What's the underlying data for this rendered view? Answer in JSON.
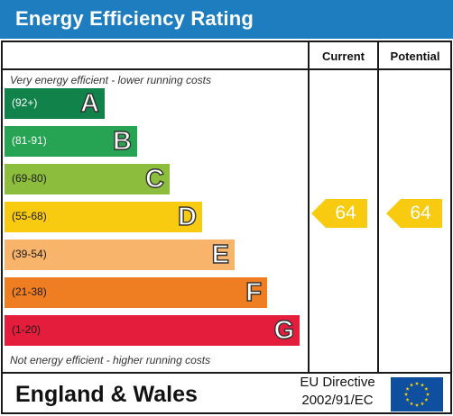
{
  "header": {
    "title": "Energy Efficiency Rating"
  },
  "columns": {
    "current": "Current",
    "potential": "Potential"
  },
  "notes": {
    "top": "Very energy efficient - lower running costs",
    "bottom": "Not energy efficient - higher running costs"
  },
  "bands": [
    {
      "range": "(92+)",
      "letter": "A",
      "color": "#11824a"
    },
    {
      "range": "(81-91)",
      "letter": "B",
      "color": "#27a453"
    },
    {
      "range": "(69-80)",
      "letter": "C",
      "color": "#8dbd3c"
    },
    {
      "range": "(55-68)",
      "letter": "D",
      "color": "#f8cb11"
    },
    {
      "range": "(39-54)",
      "letter": "E",
      "color": "#f9b46b"
    },
    {
      "range": "(21-38)",
      "letter": "F",
      "color": "#ef7e22"
    },
    {
      "range": "(1-20)",
      "letter": "G",
      "color": "#e41d3d"
    }
  ],
  "ratings": {
    "current": {
      "value": "64",
      "band": "D",
      "color": "#f8cb11"
    },
    "potential": {
      "value": "64",
      "band": "D",
      "color": "#f8cb11"
    }
  },
  "footer": {
    "region": "England & Wales",
    "directive_line1": "EU Directive",
    "directive_line2": "2002/91/EC",
    "flag_icon": "eu-flag-icon",
    "flag_color": "#0e4fa0",
    "star_color": "#ffd100"
  },
  "chart_data": {
    "type": "bar",
    "title": "Energy Efficiency Rating",
    "categories": [
      "A",
      "B",
      "C",
      "D",
      "E",
      "F",
      "G"
    ],
    "ranges": [
      "(92+)",
      "(81-91)",
      "(69-80)",
      "(55-68)",
      "(39-54)",
      "(21-38)",
      "(1-20)"
    ],
    "current": 64,
    "potential": 64
  }
}
